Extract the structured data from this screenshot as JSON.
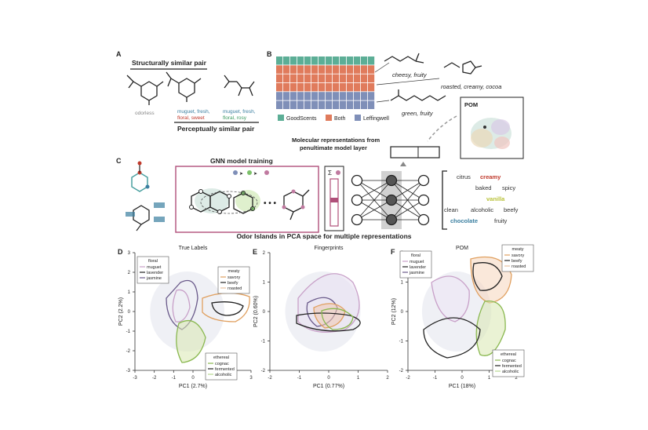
{
  "panelA": {
    "letter": "A",
    "struct_title": "Structurally similar pair",
    "perc_title": "Perceptually similar pair",
    "mol1_label": "odorless",
    "mol2_words": [
      {
        "text": "muguet, fresh,",
        "color": "#3b7fa0"
      },
      {
        "text": "floral, sweet",
        "color": "#c0392b"
      }
    ],
    "mol3_words": [
      {
        "text": "muguet, fresh,",
        "color": "#3b7fa0"
      },
      {
        "text": "floral, rosy",
        "color": "#3d9a60"
      }
    ]
  },
  "panelB": {
    "letter": "B",
    "rows": [
      "green",
      "orange",
      "orange",
      "orange",
      "blue",
      "blue"
    ],
    "colors": {
      "green": "#5cae96",
      "orange": "#e07b5c",
      "blue": "#7f8fb8"
    },
    "molecule_labels": [
      "cheesy, fruity",
      "roasted, creamy, cocoa",
      "green, fruity"
    ],
    "legend": [
      {
        "label": "GoodScents",
        "color": "#5cae96"
      },
      {
        "label": "Both",
        "color": "#e07b5c"
      },
      {
        "label": "Leffingwell",
        "color": "#7f8fb8"
      }
    ],
    "pom_label": "POM"
  },
  "panelC": {
    "letter": "C",
    "gnn_title": "GNN model training",
    "sum_symbol": "Σ",
    "rep_title_1": "Molecular representations from",
    "rep_title_2": "penultimate model layer",
    "odor_words": [
      {
        "text": "citrus",
        "color": "#333333"
      },
      {
        "text": "creamy",
        "color": "#c0392b"
      },
      {
        "text": "baked",
        "color": "#333333"
      },
      {
        "text": "spicy",
        "color": "#333333"
      },
      {
        "text": "vanilla",
        "color": "#b9c23a"
      },
      {
        "text": "clean",
        "color": "#333333"
      },
      {
        "text": "alcoholic",
        "color": "#333333"
      },
      {
        "text": "beefy",
        "color": "#333333"
      },
      {
        "text": "chocolate",
        "color": "#3b7fa0"
      },
      {
        "text": "fruity",
        "color": "#333333"
      }
    ]
  },
  "section_title": "Odor Islands in PCA space for multiple representations",
  "plots": [
    {
      "letter": "D",
      "title": "True Labels",
      "xlabel": "PC1 (2.7%)",
      "ylabel": "PC2 (2.2%)",
      "xticks": [
        "-3",
        "-2",
        "-1",
        "0",
        "1",
        "2",
        "3"
      ],
      "yticks": [
        "3",
        "2",
        "1",
        "0",
        "-1",
        "-2",
        "-3"
      ],
      "legends": [
        {
          "title": "floral",
          "items": [
            "muguet",
            "lavender",
            "jasmine"
          ]
        },
        {
          "title": "meaty",
          "items": [
            "savory",
            "beefy",
            "roasted"
          ]
        },
        {
          "title": "ethereal",
          "items": [
            "cognac",
            "fermented",
            "alcoholic"
          ]
        }
      ]
    },
    {
      "letter": "E",
      "title": "Fingerprints",
      "xlabel": "PC1 (0.77%)",
      "ylabel": "PC2 (0.60%)",
      "xticks": [
        "-2",
        "-1",
        "0",
        "1",
        "2"
      ],
      "yticks": [
        "2",
        "1",
        "0",
        "-1",
        "-2"
      ],
      "legends": []
    },
    {
      "letter": "F",
      "title": "POM",
      "xlabel": "PC1 (18%)",
      "ylabel": "PC2 (12%)",
      "xticks": [
        "-2",
        "-1",
        "0",
        "1",
        "2"
      ],
      "yticks": [
        "2",
        "1",
        "0",
        "-1",
        "-2"
      ],
      "legends": [
        {
          "title": "floral",
          "items": [
            "muguet",
            "lavender",
            "jasmine"
          ]
        },
        {
          "title": "meaty",
          "items": [
            "savory",
            "beefy",
            "roasted"
          ]
        },
        {
          "title": "ethereal",
          "items": [
            "cognac",
            "fermented",
            "alcoholic"
          ]
        }
      ]
    }
  ]
}
